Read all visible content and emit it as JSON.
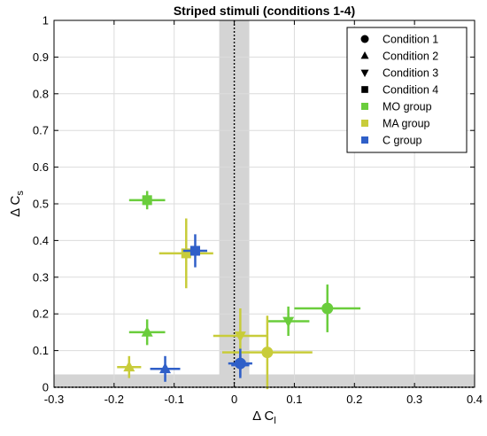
{
  "chart_data": {
    "type": "scatter",
    "title": "Striped stimuli (conditions 1-4)",
    "xlabel": "Δ C",
    "xlabel_sub": "l",
    "ylabel": "Δ C",
    "ylabel_sub": "s",
    "xlim": [
      -0.3,
      0.4
    ],
    "ylim": [
      0,
      1
    ],
    "xticks": [
      "-0.3",
      "-0.2",
      "-0.1",
      "0",
      "0.1",
      "0.2",
      "0.3",
      "0.4"
    ],
    "yticks": [
      "0",
      "0.1",
      "0.2",
      "0.3",
      "0.4",
      "0.5",
      "0.6",
      "0.7",
      "0.8",
      "0.9",
      "1"
    ],
    "grid": true,
    "legend_position": "top-right",
    "shaded_bands": [
      {
        "axis": "x",
        "from": -0.025,
        "to": 0.025,
        "color": "#d4d4d4"
      },
      {
        "axis": "y",
        "from": 0,
        "to": 0.035,
        "color": "#d4d4d4"
      }
    ],
    "reference_lines": [
      {
        "axis": "x",
        "value": 0,
        "style": "dotted"
      },
      {
        "axis": "y",
        "value": 0,
        "style": "dotted"
      }
    ],
    "legend": {
      "conditions": [
        {
          "label": "Condition 1",
          "marker": "circle"
        },
        {
          "label": "Condition 2",
          "marker": "triangle-up"
        },
        {
          "label": "Condition 3",
          "marker": "triangle-down"
        },
        {
          "label": "Condition 4",
          "marker": "square"
        }
      ],
      "groups": [
        {
          "label": "MO group",
          "color": "#6acd3c"
        },
        {
          "label": "MA group",
          "color": "#c8cc3a"
        },
        {
          "label": "C group",
          "color": "#2f5fc8"
        }
      ]
    },
    "points": [
      {
        "group": "MO group",
        "condition": "Condition 1",
        "x": 0.155,
        "y": 0.215,
        "xerr": 0.055,
        "yerr": 0.065
      },
      {
        "group": "MO group",
        "condition": "Condition 2",
        "x": -0.145,
        "y": 0.15,
        "xerr": 0.03,
        "yerr": 0.035
      },
      {
        "group": "MO group",
        "condition": "Condition 3",
        "x": 0.09,
        "y": 0.18,
        "xerr": 0.035,
        "yerr": 0.04
      },
      {
        "group": "MO group",
        "condition": "Condition 4",
        "x": -0.145,
        "y": 0.51,
        "xerr": 0.03,
        "yerr": 0.025
      },
      {
        "group": "MA group",
        "condition": "Condition 1",
        "x": 0.055,
        "y": 0.095,
        "xerr": 0.075,
        "yerr": 0.1
      },
      {
        "group": "MA group",
        "condition": "Condition 2",
        "x": -0.175,
        "y": 0.055,
        "xerr": 0.02,
        "yerr": 0.03
      },
      {
        "group": "MA group",
        "condition": "Condition 3",
        "x": 0.01,
        "y": 0.14,
        "xerr": 0.045,
        "yerr": 0.075
      },
      {
        "group": "MA group",
        "condition": "Condition 4",
        "x": -0.08,
        "y": 0.365,
        "xerr": 0.045,
        "yerr": 0.095
      },
      {
        "group": "C group",
        "condition": "Condition 1",
        "x": 0.01,
        "y": 0.065,
        "xerr": 0.02,
        "yerr": 0.04
      },
      {
        "group": "C group",
        "condition": "Condition 2",
        "x": -0.115,
        "y": 0.05,
        "xerr": 0.025,
        "yerr": 0.035
      },
      {
        "group": "C group",
        "condition": "Condition 3",
        "x": 0.01,
        "y": 0.06,
        "xerr": 0.015,
        "yerr": 0.03
      },
      {
        "group": "C group",
        "condition": "Condition 4",
        "x": -0.065,
        "y": 0.372,
        "xerr": 0.02,
        "yerr": 0.045
      }
    ]
  }
}
